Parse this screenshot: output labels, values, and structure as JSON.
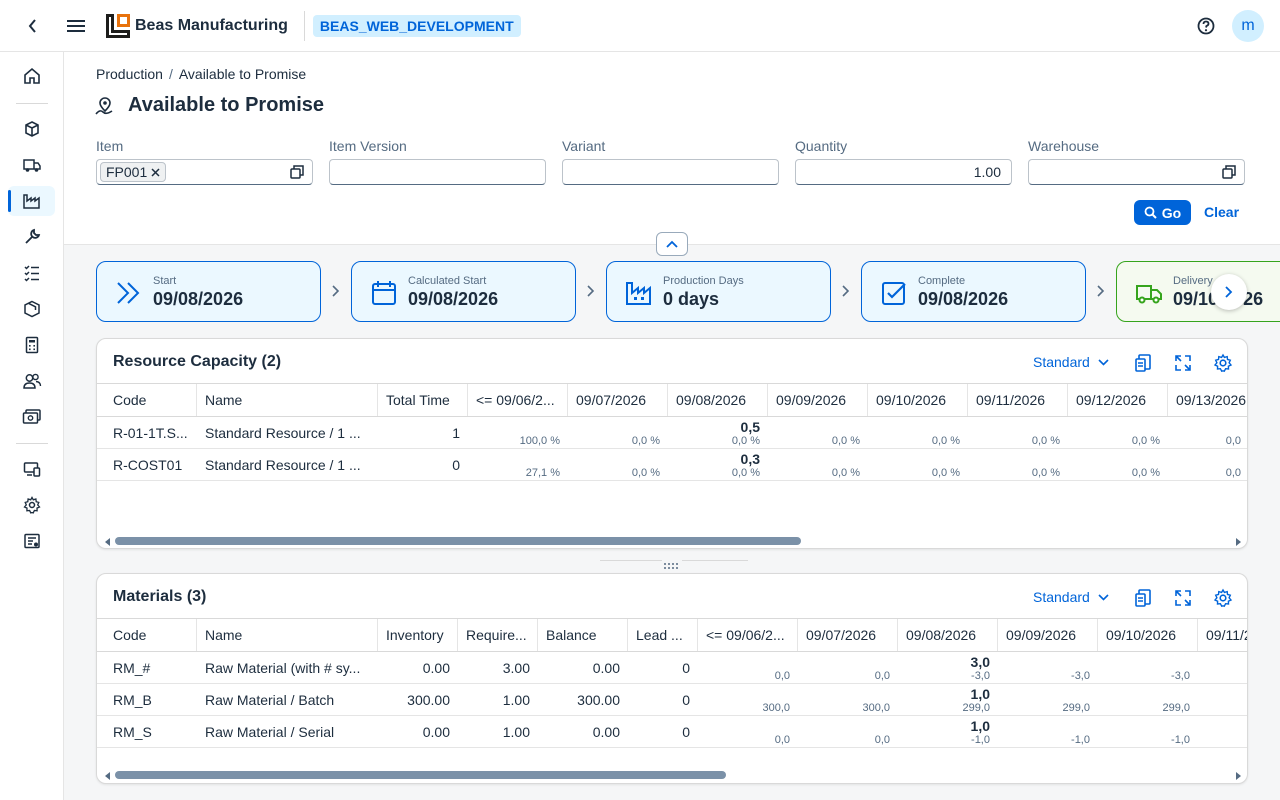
{
  "shell": {
    "brand": "Beas Manufacturing",
    "system": "BEAS_WEB_DEVELOPMENT",
    "avatar_initial": "m"
  },
  "breadcrumb": {
    "parent": "Production",
    "current": "Available to Promise"
  },
  "page": {
    "title": "Available to Promise"
  },
  "filters": {
    "item_label": "Item",
    "item_token": "FP001",
    "item_version_label": "Item Version",
    "variant_label": "Variant",
    "quantity_label": "Quantity",
    "quantity_value": "1.00",
    "warehouse_label": "Warehouse",
    "go_label": "Go",
    "clear_label": "Clear"
  },
  "flow": [
    {
      "label": "Start",
      "value": "09/08/2026",
      "icon": "double-chevron-icon"
    },
    {
      "label": "Calculated Start",
      "value": "09/08/2026",
      "icon": "calendar-icon"
    },
    {
      "label": "Production Days",
      "value": "0 days",
      "icon": "factory-icon"
    },
    {
      "label": "Complete",
      "value": "09/08/2026",
      "icon": "checkbox-icon"
    },
    {
      "label": "Delivery",
      "value": "09/10/2026",
      "icon": "truck-icon"
    }
  ],
  "resource": {
    "title": "Resource Capacity (2)",
    "variant": "Standard",
    "columns": [
      "Code",
      "Name",
      "Total Time",
      "<= 09/06/2...",
      "09/07/2026",
      "09/08/2026",
      "09/09/2026",
      "09/10/2026",
      "09/11/2026",
      "09/12/2026",
      "09/13/2026"
    ],
    "rows": [
      {
        "code": "R-01-1T.S...",
        "name": "Standard Resource / 1 ...",
        "total": "1",
        "cells": [
          {
            "t": "",
            "b": "100,0 %"
          },
          {
            "t": "",
            "b": "0,0 %"
          },
          {
            "t": "0,5",
            "b": "0,0 %"
          },
          {
            "t": "",
            "b": "0,0 %"
          },
          {
            "t": "",
            "b": "0,0 %"
          },
          {
            "t": "",
            "b": "0,0 %"
          },
          {
            "t": "",
            "b": "0,0 %"
          },
          {
            "t": "",
            "b": "0,0"
          }
        ]
      },
      {
        "code": "R-COST01",
        "name": "Standard Resource / 1 ...",
        "total": "0",
        "cells": [
          {
            "t": "",
            "b": "27,1 %"
          },
          {
            "t": "",
            "b": "0,0 %"
          },
          {
            "t": "0,3",
            "b": "0,0 %"
          },
          {
            "t": "",
            "b": "0,0 %"
          },
          {
            "t": "",
            "b": "0,0 %"
          },
          {
            "t": "",
            "b": "0,0 %"
          },
          {
            "t": "",
            "b": "0,0 %"
          },
          {
            "t": "",
            "b": "0,0"
          }
        ]
      }
    ]
  },
  "materials": {
    "title": "Materials (3)",
    "variant": "Standard",
    "columns": [
      "Code",
      "Name",
      "Inventory",
      "Require...",
      "Balance",
      "Lead ...",
      "<= 09/06/2...",
      "09/07/2026",
      "09/08/2026",
      "09/09/2026",
      "09/10/2026",
      "09/11/2..."
    ],
    "rows": [
      {
        "code": "RM_#",
        "name": "Raw Material (with # sy...",
        "inventory": "0.00",
        "required": "3.00",
        "balance": "0.00",
        "lead": "0",
        "cells": [
          {
            "t": "",
            "b": "0,0"
          },
          {
            "t": "",
            "b": "0,0"
          },
          {
            "t": "3,0",
            "b": "-3,0"
          },
          {
            "t": "",
            "b": "-3,0"
          },
          {
            "t": "",
            "b": "-3,0"
          }
        ]
      },
      {
        "code": "RM_B",
        "name": "Raw Material / Batch",
        "inventory": "300.00",
        "required": "1.00",
        "balance": "300.00",
        "lead": "0",
        "cells": [
          {
            "t": "",
            "b": "300,0"
          },
          {
            "t": "",
            "b": "300,0"
          },
          {
            "t": "1,0",
            "b": "299,0"
          },
          {
            "t": "",
            "b": "299,0"
          },
          {
            "t": "",
            "b": "299,0"
          }
        ]
      },
      {
        "code": "RM_S",
        "name": "Raw Material / Serial",
        "inventory": "0.00",
        "required": "1.00",
        "balance": "0.00",
        "lead": "0",
        "cells": [
          {
            "t": "",
            "b": "0,0"
          },
          {
            "t": "",
            "b": "0,0"
          },
          {
            "t": "1,0",
            "b": "-1,0"
          },
          {
            "t": "",
            "b": "-1,0"
          },
          {
            "t": "",
            "b": "-1,0"
          }
        ]
      }
    ]
  },
  "colors": {
    "accent": "#0064d9",
    "card_bg": "#ebf8ff",
    "delivery_border": "#36a41d"
  }
}
